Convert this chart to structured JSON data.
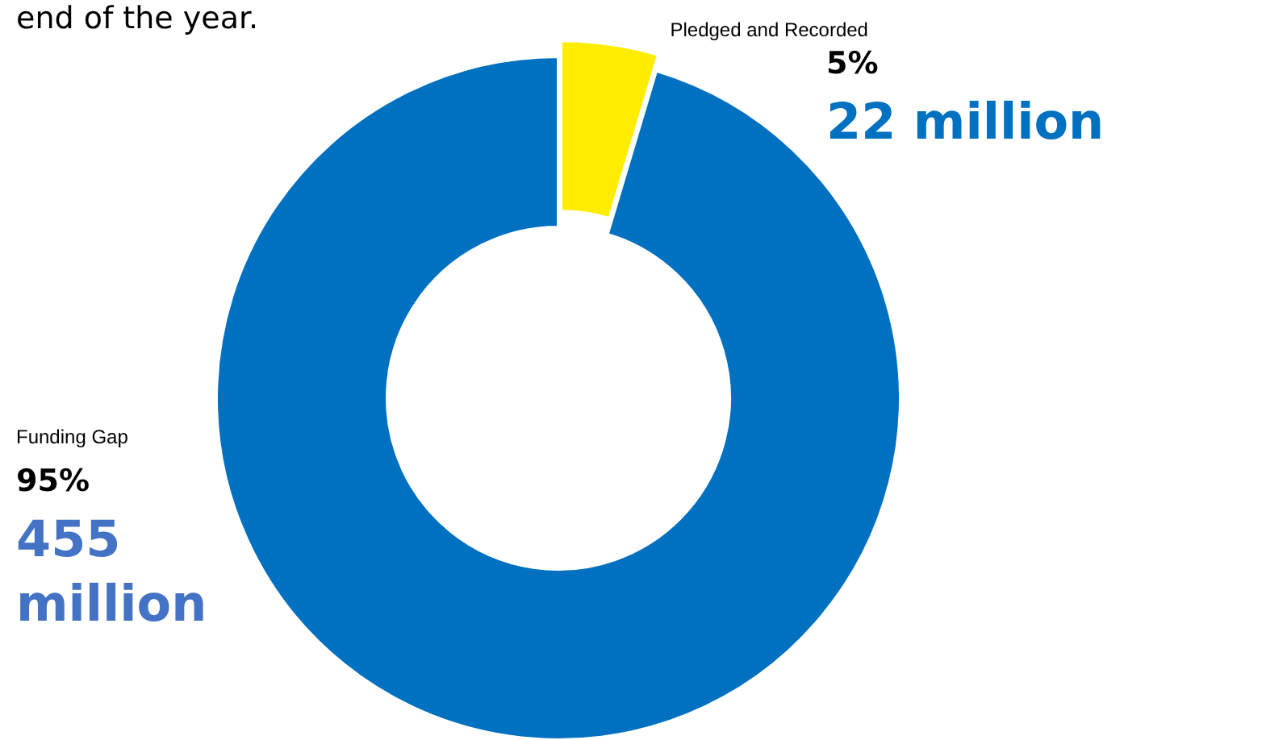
{
  "chart_data": {
    "type": "donut",
    "categories": [
      "Pledged and Recorded",
      "Funding Gap"
    ],
    "values": [
      22,
      455
    ],
    "colors": [
      "#ffed00",
      "#0070c0"
    ],
    "value_labels": [
      "22 million",
      "455 million"
    ],
    "annotations": [
      "end of the year.",
      {
        "text": "5%",
        "x": "Pledged and Recorded"
      },
      {
        "text": "95%",
        "x": "Funding Gap"
      }
    ]
  }
}
